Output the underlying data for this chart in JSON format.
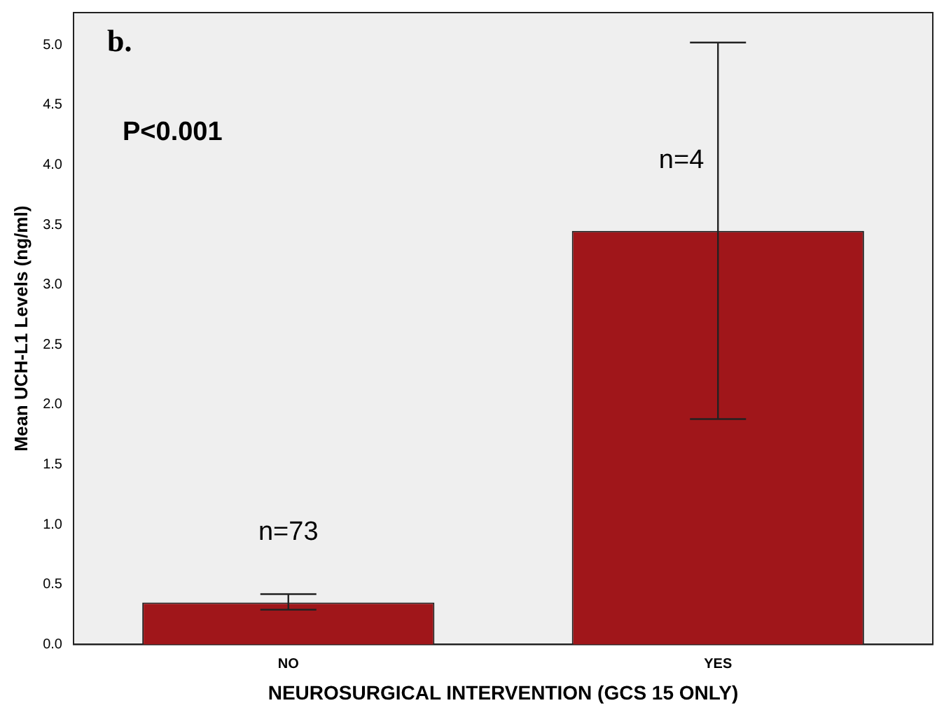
{
  "chart_data": {
    "type": "bar",
    "xlabel": "NEUROSURGICAL INTERVENTION (GCS 15 ONLY)",
    "ylabel": "Mean UCH-L1 Levels (ng/ml)",
    "categories": [
      "NO",
      "YES"
    ],
    "values": [
      0.35,
      3.45
    ],
    "errors": [
      [
        0.29,
        0.42
      ],
      [
        1.88,
        5.02
      ]
    ],
    "color": "#a0161a",
    "ylim": [
      0,
      5.27
    ],
    "yticks": [
      {
        "value": 0,
        "label": "0.0"
      },
      {
        "value": 0.5,
        "label": "0.5"
      },
      {
        "value": 1,
        "label": "1.0"
      },
      {
        "value": 1.5,
        "label": "1.5"
      },
      {
        "value": 2,
        "label": "2.0"
      },
      {
        "value": 2.5,
        "label": "2.5"
      },
      {
        "value": 3,
        "label": "3.0"
      },
      {
        "value": 3.5,
        "label": "3.5"
      },
      {
        "value": 4,
        "label": "4.0"
      },
      {
        "value": 4.5,
        "label": "4.5"
      },
      {
        "value": 5,
        "label": "5.0"
      }
    ],
    "grid": false,
    "legend": false,
    "annotations": [
      "b.",
      "P<0.001",
      "n=73",
      "n=4"
    ]
  }
}
